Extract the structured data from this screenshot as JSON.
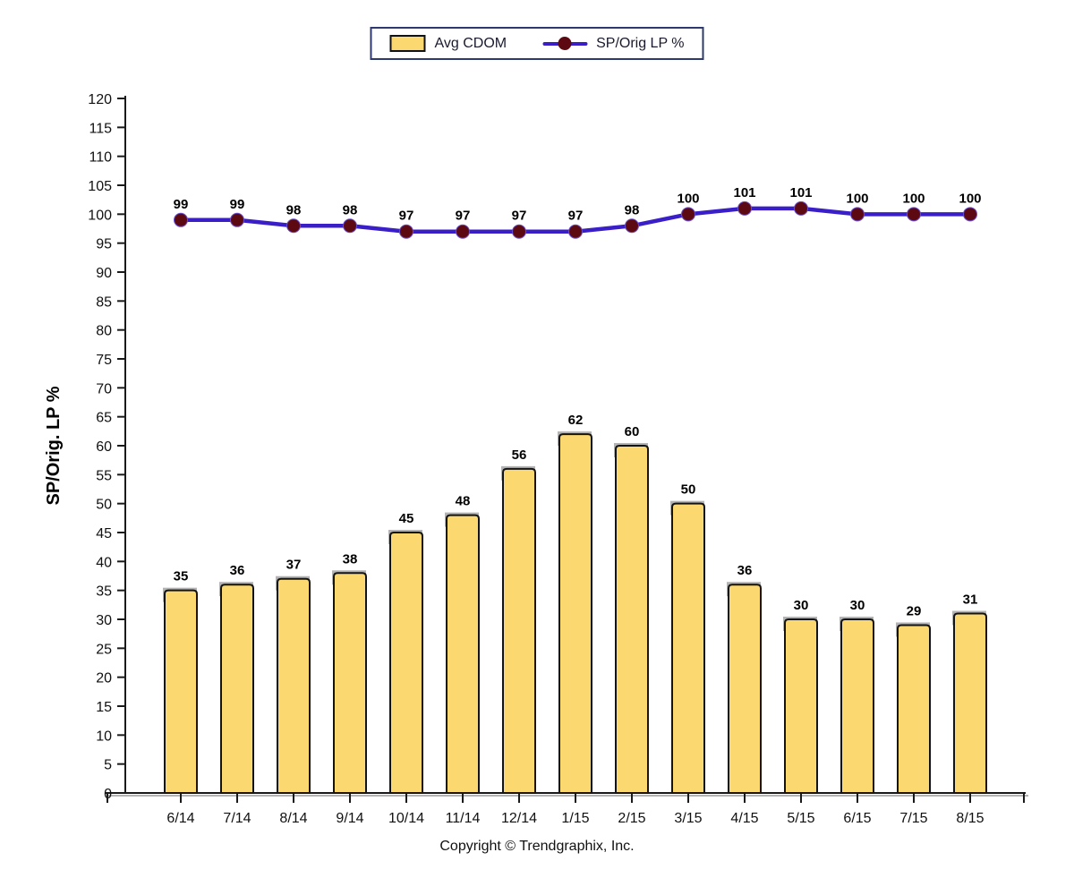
{
  "legend": {
    "items": [
      {
        "label": "Avg CDOM",
        "swatch": "bar"
      },
      {
        "label": "SP/Orig LP %",
        "swatch": "line-marker"
      }
    ],
    "border_color": "#2e3a6e"
  },
  "footer": {
    "copyright": "Copyright © Trendgraphix, Inc."
  },
  "colors": {
    "bar_fill": "#FCD870",
    "bar_border": "#141414",
    "bar_shadow": "#b3b3b3",
    "line": "#3A1EC8",
    "marker": "#5C0912",
    "marker_ring": "#6a4ed0",
    "axis": "#1a1a1a",
    "axis_shadow": "#b3b3b3",
    "tick_label": "#111111",
    "data_label": "#000000"
  },
  "chart_data": {
    "type": "bar",
    "subtype": "combo-bar-line",
    "categories": [
      "6/14",
      "7/14",
      "8/14",
      "9/14",
      "10/14",
      "11/14",
      "12/14",
      "1/15",
      "2/15",
      "3/15",
      "4/15",
      "5/15",
      "6/15",
      "7/15",
      "8/15"
    ],
    "series": [
      {
        "name": "Avg CDOM",
        "type": "bar",
        "values": [
          35,
          36,
          37,
          38,
          45,
          48,
          56,
          62,
          60,
          50,
          36,
          30,
          30,
          29,
          31
        ]
      },
      {
        "name": "SP/Orig LP %",
        "type": "line",
        "values": [
          99,
          99,
          98,
          98,
          97,
          97,
          97,
          97,
          98,
          100,
          101,
          101,
          100,
          100,
          100
        ]
      }
    ],
    "title": "",
    "xlabel": "",
    "ylabel": "SP/Orig. LP %",
    "ylim": [
      0,
      120
    ],
    "yticks": [
      0,
      5,
      10,
      15,
      20,
      25,
      30,
      35,
      40,
      45,
      50,
      55,
      60,
      65,
      70,
      75,
      80,
      85,
      90,
      95,
      100,
      105,
      110,
      115,
      120
    ],
    "data_labels": true,
    "grid": false,
    "legend_position": "top-center"
  }
}
